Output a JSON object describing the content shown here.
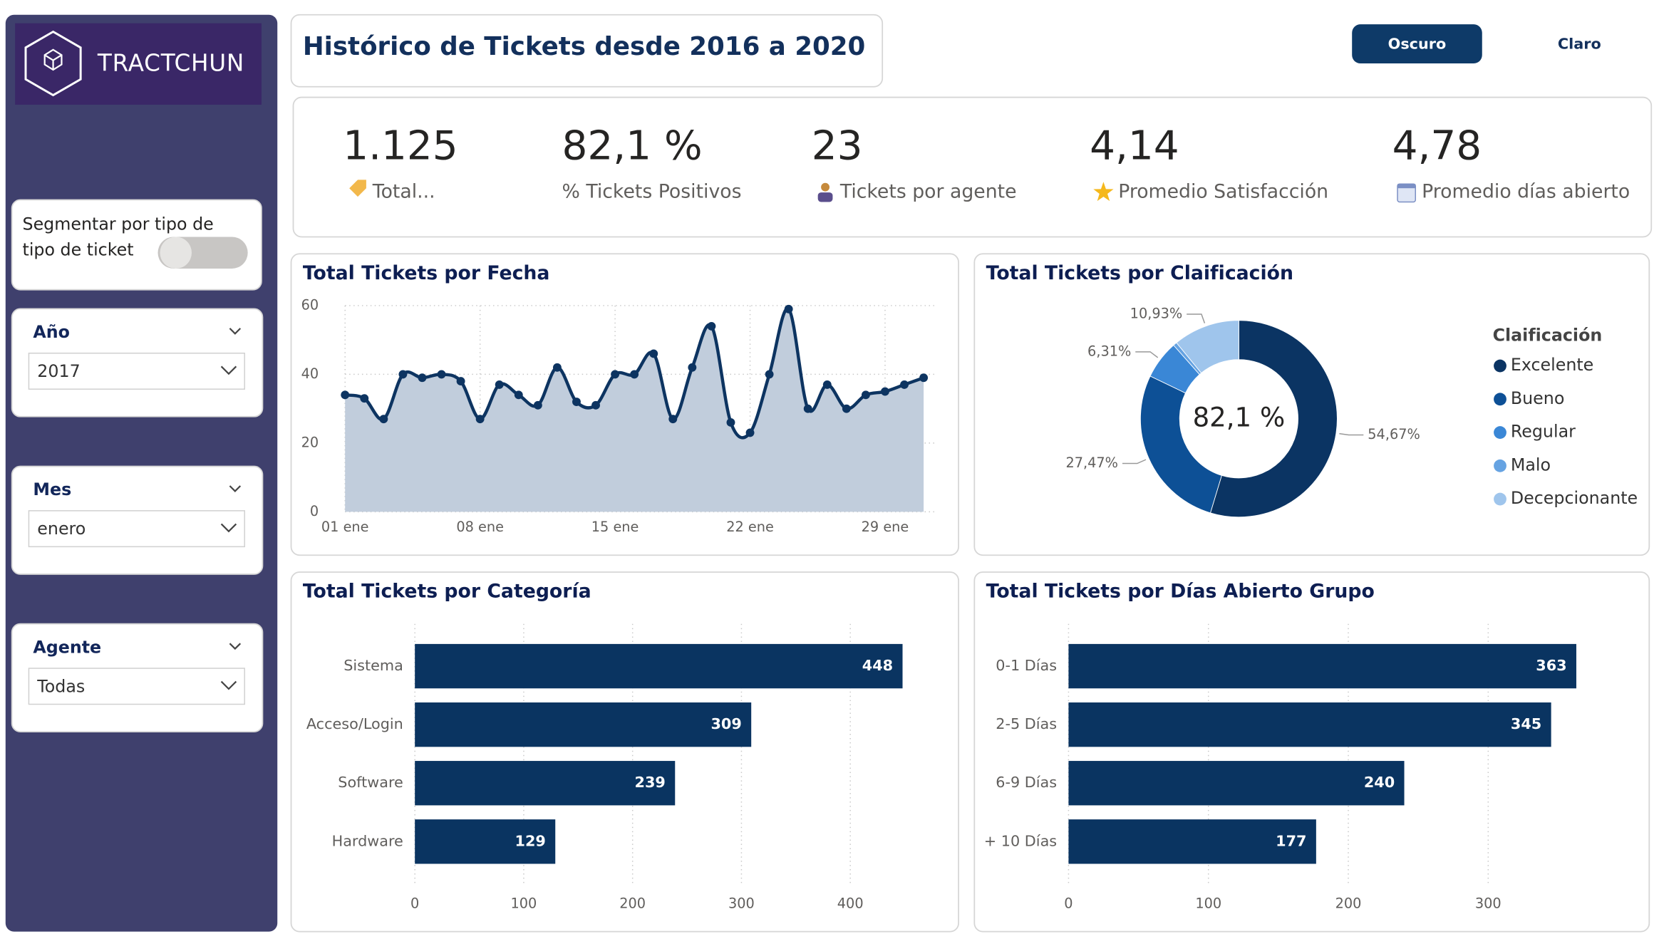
{
  "header": {
    "brand": "TRACTCHUN",
    "title": "Histórico de Tickets desde 2016 a 2020"
  },
  "buttons": [
    "Oscuro",
    "Claro"
  ],
  "kpis": [
    {
      "value": "1.125",
      "label": "Total..."
    },
    {
      "value": "82,1 %",
      "label": "% Tickets Positivos"
    },
    {
      "value": "23",
      "label": "Tickets por agente"
    },
    {
      "value": "4,14",
      "label": "Promedio Satisfacción"
    },
    {
      "value": "4,78",
      "label": "Promedio días abierto"
    }
  ],
  "toggle": {
    "lines": [
      "Segmentar por tipo de",
      "tipo de ticket"
    ]
  },
  "slicers": [
    {
      "label": "Año",
      "value": "2017"
    },
    {
      "label": "Mes",
      "value": "enero"
    },
    {
      "label": "Agente",
      "value": "Todas"
    }
  ],
  "chart_data": [
    {
      "type": "line",
      "title": "Total Tickets por Fecha",
      "categories": [
        "01 ene",
        null,
        null,
        null,
        null,
        null,
        null,
        "08 ene",
        null,
        null,
        null,
        null,
        null,
        null,
        "15 ene",
        null,
        null,
        null,
        null,
        null,
        null,
        "22 ene",
        null,
        null,
        null,
        null,
        null,
        null,
        "29 ene",
        null,
        null
      ],
      "values": [
        34,
        33,
        27,
        40,
        39,
        40,
        38,
        27,
        37,
        34,
        31,
        42,
        32,
        31,
        40,
        40,
        46,
        27,
        42,
        54,
        26,
        23,
        40,
        59,
        30,
        37,
        30,
        34,
        35,
        37,
        39
      ],
      "color": "#0d3461",
      "ylim": [
        0,
        60
      ],
      "yticks": [
        0,
        20,
        40,
        60
      ],
      "grid": true
    },
    {
      "type": "donut",
      "title": "Total Tickets por Claificación",
      "legend_title": "Claificación",
      "center_label": "82,1 %",
      "categories": [
        "Excelente",
        "Bueno",
        "Regular",
        "Malo",
        "Decepcionante"
      ],
      "values": [
        54.67,
        27.47,
        6.31,
        0.62,
        10.93
      ],
      "value_labels": [
        "54,67%",
        "27,47%",
        "6,31%",
        null,
        "10,93%"
      ],
      "colors": [
        "#0b3463",
        "#0d5096",
        "#3a87d6",
        "#66a3e2",
        "#9fc5ec"
      ]
    },
    {
      "type": "hbar",
      "title": "Total Tickets por Categoría",
      "categories": [
        "Sistema",
        "Acceso/Login",
        "Software",
        "Hardware"
      ],
      "values": [
        448,
        309,
        239,
        129
      ],
      "color": "#0a3461",
      "xlim": [
        0,
        480
      ],
      "xticks": [
        0,
        100,
        200,
        300,
        400
      ],
      "grid": true
    },
    {
      "type": "hbar",
      "title": "Total Tickets por Días Abierto Grupo",
      "categories": [
        "0-1 Días",
        "2-5 Días",
        "6-9 Días",
        "+ 10 Días"
      ],
      "values": [
        363,
        345,
        240,
        177
      ],
      "color": "#0a3461",
      "xlim": [
        0,
        400
      ],
      "xticks": [
        0,
        100,
        200,
        300
      ],
      "grid": true
    }
  ]
}
